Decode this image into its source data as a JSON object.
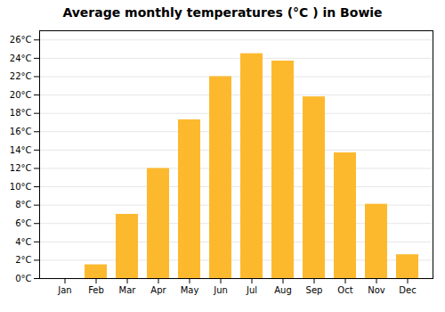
{
  "chart_data": {
    "type": "bar",
    "title": "Average monthly temperatures (°C ) in Bowie",
    "categories": [
      "Jan",
      "Feb",
      "Mar",
      "Apr",
      "May",
      "Jun",
      "Jul",
      "Aug",
      "Sep",
      "Oct",
      "Nov",
      "Dec"
    ],
    "values": [
      0.0,
      1.5,
      7.0,
      12.0,
      17.3,
      22.0,
      24.5,
      23.7,
      19.8,
      13.7,
      8.1,
      2.6
    ],
    "color": "#FDB92E",
    "ylim": [
      0,
      27
    ],
    "yticks": [
      {
        "value": 0,
        "label": "0°C"
      },
      {
        "value": 2,
        "label": "2°C"
      },
      {
        "value": 4,
        "label": "4°C"
      },
      {
        "value": 6,
        "label": "6°C"
      },
      {
        "value": 8,
        "label": "8°C"
      },
      {
        "value": 10,
        "label": "10°C"
      },
      {
        "value": 12,
        "label": "12°C"
      },
      {
        "value": 14,
        "label": "14°C"
      },
      {
        "value": 16,
        "label": "16°C"
      },
      {
        "value": 18,
        "label": "18°C"
      },
      {
        "value": 20,
        "label": "20°C"
      },
      {
        "value": 22,
        "label": "22°C"
      },
      {
        "value": 24,
        "label": "24°C"
      },
      {
        "value": 26,
        "label": "26°C"
      }
    ],
    "grid": true
  }
}
